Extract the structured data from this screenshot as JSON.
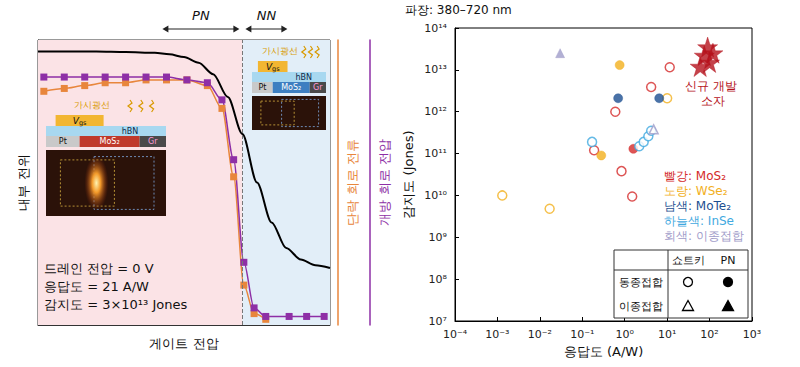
{
  "chart_data": [
    {
      "type": "line",
      "xlabel": "게이트 전압",
      "ylabel": "내부 전위",
      "xlim": [
        0,
        10
      ],
      "ylim": [
        0,
        1
      ],
      "y2lim": [
        0,
        1
      ],
      "tick_labels": false,
      "grid": false,
      "regions": [
        {
          "label": "PN",
          "from": 0,
          "to": 7,
          "color": "#fbe3e6"
        },
        {
          "label": "NN",
          "from": 7,
          "to": 10,
          "color": "#e2eef8"
        }
      ],
      "series": [
        {
          "color": "#000000",
          "marker": "none",
          "line_style": "solid",
          "x": [
            0,
            1,
            2,
            3,
            4,
            4.5,
            5,
            5.5,
            6,
            6.5,
            7,
            7.5,
            8,
            8.5,
            9,
            9.5,
            10
          ],
          "values": [
            0.96,
            0.96,
            0.96,
            0.958,
            0.955,
            0.95,
            0.94,
            0.92,
            0.88,
            0.8,
            0.67,
            0.5,
            0.36,
            0.27,
            0.23,
            0.21,
            0.2
          ]
        },
        {
          "name": "단락 회로 전류",
          "color": "#e8863c",
          "marker": "square",
          "line_style": "solid",
          "axis": "y2",
          "x": [
            0.2,
            0.9,
            1.6,
            2.3,
            3.0,
            3.7,
            4.4,
            5.1,
            5.8,
            6.3,
            6.7,
            7.05,
            7.4,
            7.8
          ],
          "values": [
            0.82,
            0.83,
            0.84,
            0.85,
            0.85,
            0.86,
            0.86,
            0.86,
            0.84,
            0.76,
            0.52,
            0.14,
            0.04,
            0.02
          ]
        },
        {
          "name": "개방 회로 전압",
          "color": "#8e2fa6",
          "marker": "square",
          "line_style": "solid",
          "axis": "y2",
          "x": [
            0.2,
            0.9,
            1.6,
            2.3,
            3.0,
            3.7,
            4.4,
            5.1,
            5.8,
            6.3,
            6.7,
            7.05,
            7.4,
            7.8,
            8.6,
            9.2,
            9.8
          ],
          "values": [
            0.87,
            0.87,
            0.87,
            0.87,
            0.87,
            0.87,
            0.87,
            0.86,
            0.85,
            0.79,
            0.58,
            0.22,
            0.06,
            0.03,
            0.03,
            0.03,
            0.03
          ]
        }
      ],
      "annotations": [
        "드레인 전압 = 0 V",
        "응답도 = 21 A/W",
        "감지도 = 3×10¹³ Jones"
      ],
      "insets": [
        {
          "light": "가시광선",
          "gate": [
            "V",
            "gs"
          ],
          "layers": [
            "hBN",
            "Pt",
            "MoS₂",
            "Gr"
          ]
        },
        {
          "light": "가시광선",
          "gate": [
            "V",
            "gs"
          ],
          "layers": [
            "hBN",
            "Pt",
            "MoS₂",
            "Gr"
          ]
        }
      ]
    },
    {
      "type": "scatter",
      "title": "파장: 380–720 nm",
      "xlabel": "응답도 (A/W)",
      "ylabel": "감지도 (Jones)",
      "log": true,
      "grid": false,
      "xlim": [
        0.0001,
        1000
      ],
      "ylim": [
        10000000.0,
        100000000000000.0
      ],
      "xticks": [
        {
          "value": 0.0001,
          "label": "10⁻⁴"
        },
        {
          "value": 0.001,
          "label": "10⁻³"
        },
        {
          "value": 0.01,
          "label": "10⁻²"
        },
        {
          "value": 0.1,
          "label": "10⁻¹"
        },
        {
          "value": 1,
          "label": "10⁰"
        },
        {
          "value": 10,
          "label": "10¹"
        },
        {
          "value": 100,
          "label": "10²"
        },
        {
          "value": 1000,
          "label": "10³"
        }
      ],
      "yticks": [
        {
          "value": 10000000.0,
          "label": "10⁷"
        },
        {
          "value": 100000000.0,
          "label": "10⁸"
        },
        {
          "value": 1000000000.0,
          "label": "10⁹"
        },
        {
          "value": 10000000000.0,
          "label": "10¹⁰"
        },
        {
          "value": 100000000000.0,
          "label": "10¹¹"
        },
        {
          "value": 1000000000000.0,
          "label": "10¹²"
        },
        {
          "value": 10000000000000.0,
          "label": "10¹³"
        },
        {
          "value": 100000000000000.0,
          "label": "10¹⁴"
        }
      ],
      "groups": [
        {
          "label": "빨강: MoS₂",
          "color": "#d42a2a",
          "sets": [
            {
              "marker": "open_circle",
              "x": [
                11.5,
                4.2,
                0.6,
                0.19,
                0.84,
                1.5
              ],
              "values": [
                11500000000000.0,
                3900000000000.0,
                1000000000000.0,
                120000000000.0,
                38000000000.0,
                9400000000.0
              ]
            },
            {
              "marker": "circle",
              "x": [
                1.6
              ],
              "values": [
                130000000000.0
              ]
            }
          ]
        },
        {
          "label": "노랑: WSe₂",
          "color": "#f2b01e",
          "sets": [
            {
              "marker": "open_circle",
              "x": [
                10,
                0.0013,
                0.017
              ],
              "values": [
                2100000000000.0,
                10000000000.0,
                4800000000.0
              ]
            },
            {
              "marker": "circle",
              "x": [
                0.76,
                0.28
              ],
              "values": [
                13000000000000.0,
                90000000000.0
              ]
            }
          ]
        },
        {
          "label": "남색: MoTe₂",
          "color": "#1d4f91",
          "sets": [
            {
              "marker": "circle",
              "x": [
                0.7,
                6.5
              ],
              "values": [
                2100000000000.0,
                2100000000000.0
              ]
            }
          ]
        },
        {
          "label": "하늘색: InSe",
          "color": "#3fa9e0",
          "sets": [
            {
              "marker": "open_circle",
              "x": [
                0.17,
                2.2,
                2.8,
                3.6,
                4.2
              ],
              "values": [
                190000000000.0,
                150000000000.0,
                190000000000.0,
                260000000000.0,
                350000000000.0
              ]
            }
          ]
        },
        {
          "label": "회색: 이종접합",
          "color": "#9f9cc9",
          "sets": [
            {
              "marker": "triangle",
              "x": [
                0.03
              ],
              "values": [
                25000000000000.0
              ]
            },
            {
              "marker": "open_triangle",
              "x": [
                4.8
              ],
              "values": [
                380000000000.0
              ]
            }
          ]
        }
      ],
      "highlight": {
        "label": "신규 개발 소자",
        "color": "#b5121b",
        "marker": "star",
        "x": [
          60,
          90,
          120,
          100,
          75
        ],
        "values": [
          12000000000000.0,
          35000000000000.0,
          25000000000000.0,
          15000000000000.0,
          22000000000000.0
        ]
      },
      "key": {
        "color": "#000000",
        "columns": [
          "쇼트키",
          "PN"
        ],
        "rows": [
          {
            "label": "동종접합",
            "markers": [
              "open_circle",
              "circle"
            ]
          },
          {
            "label": "이종접합",
            "markers": [
              "open_triangle",
              "triangle"
            ]
          }
        ]
      }
    }
  ]
}
